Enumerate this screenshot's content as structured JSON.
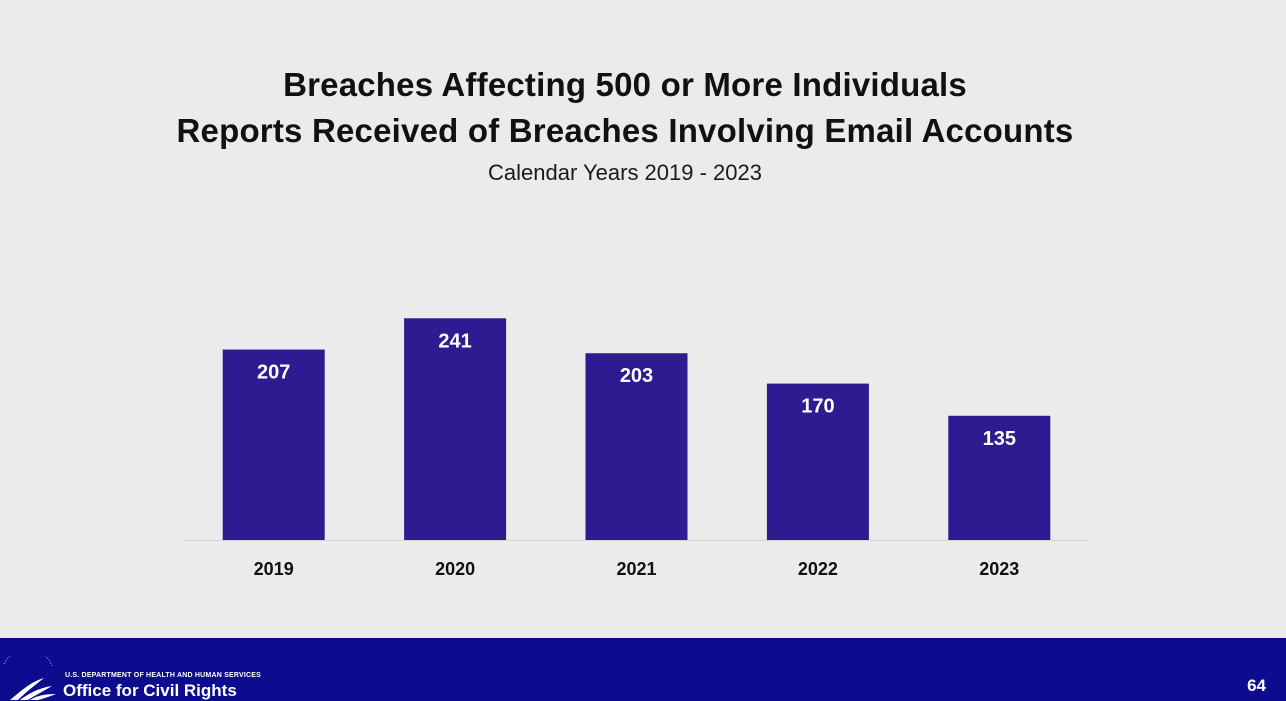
{
  "chart_data": {
    "type": "bar",
    "title": "Breaches Affecting 500 or More Individuals",
    "title2": "Reports Received  of Breaches Involving Email Accounts",
    "subtitle": "Calendar Years 2019 - 2023",
    "categories": [
      "2019",
      "2020",
      "2021",
      "2022",
      "2023"
    ],
    "values": [
      207,
      241,
      203,
      170,
      135
    ],
    "data_labels": [
      "207",
      "241",
      "203",
      "170",
      "135"
    ],
    "bar_color": "#2e1a91",
    "label_color": "#ffffff",
    "ylim": [
      0,
      250
    ],
    "grid": false,
    "legend": "none"
  },
  "footer": {
    "department": "U.S. DEPARTMENT OF HEALTH AND HUMAN SERVICES",
    "office": "Office for Civil Rights",
    "page_number": "64",
    "logo_icon": "hhs-eagle-seal-icon",
    "background": "#0d0c8e"
  }
}
